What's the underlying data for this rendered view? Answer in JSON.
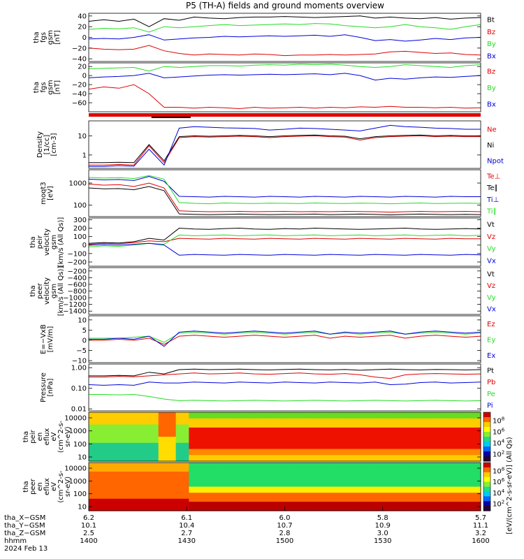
{
  "title": "P5 (TH-A) fields and ground moments overview",
  "colors": {
    "black": "#000000",
    "red": "#e00000",
    "green": "#22dd22",
    "blue": "#0000dd"
  },
  "chart_data": [
    {
      "type": "line",
      "ylabel": [
        "tha",
        "fgs",
        "gsm",
        "[nT]"
      ],
      "yticks": [
        "40",
        "20",
        "0",
        "−20",
        "−40"
      ],
      "ylim": [
        -45,
        45
      ],
      "series": [
        {
          "name": "Bt",
          "color": "black",
          "y": [
            30,
            33,
            30,
            34,
            20,
            35,
            32,
            38,
            36,
            35,
            37,
            38,
            38,
            39,
            38,
            37,
            38,
            39,
            40,
            36,
            38,
            36,
            35,
            37,
            34,
            36,
            37
          ]
        },
        {
          "name": "Bz",
          "color": "red",
          "y": [
            -20,
            -22,
            -23,
            -22,
            -15,
            -25,
            -30,
            -33,
            -31,
            -32,
            -33,
            -31,
            -32,
            -34,
            -33,
            -33,
            -32,
            -33,
            -32,
            -31,
            -27,
            -26,
            -28,
            -30,
            -29,
            -32,
            -33
          ]
        },
        {
          "name": "By",
          "color": "green",
          "y": [
            15,
            17,
            16,
            18,
            10,
            20,
            18,
            20,
            22,
            24,
            22,
            23,
            24,
            25,
            24,
            26,
            25,
            22,
            20,
            18,
            20,
            24,
            20,
            18,
            15,
            20,
            24
          ]
        },
        {
          "name": "Bx",
          "color": "blue",
          "y": [
            -3,
            -2,
            -3,
            0,
            5,
            -5,
            -3,
            -1,
            0,
            2,
            1,
            2,
            3,
            2,
            3,
            4,
            2,
            5,
            0,
            -6,
            -4,
            -7,
            -5,
            -2,
            -4,
            -1,
            0
          ]
        }
      ]
    },
    {
      "type": "line",
      "ylabel": [
        "tha",
        "fgs",
        "gsm",
        "[nT]"
      ],
      "yticks": [
        "20",
        "0",
        "−20",
        "−40",
        "−60"
      ],
      "ylim": [
        -80,
        28
      ],
      "series": [
        {
          "name": "Bz",
          "color": "red",
          "y": [
            -30,
            -25,
            -28,
            -20,
            -40,
            -70,
            -70,
            -72,
            -70,
            -71,
            -73,
            -70,
            -72,
            -71,
            -70,
            -72,
            -70,
            -71,
            -69,
            -70,
            -68,
            -70,
            -70,
            -71,
            -70,
            -72,
            -71
          ]
        },
        {
          "name": "By",
          "color": "green",
          "y": [
            15,
            16,
            17,
            18,
            10,
            20,
            18,
            20,
            22,
            22,
            21,
            23,
            24,
            23,
            25,
            24,
            25,
            23,
            20,
            18,
            20,
            24,
            22,
            20,
            18,
            22,
            24
          ]
        },
        {
          "name": "Bx",
          "color": "blue",
          "y": [
            -5,
            -3,
            -2,
            0,
            5,
            -5,
            -3,
            -1,
            1,
            2,
            1,
            2,
            3,
            2,
            3,
            4,
            2,
            5,
            0,
            -10,
            -6,
            -8,
            -5,
            -3,
            -4,
            -2,
            0
          ]
        }
      ]
    },
    {
      "type": "line",
      "scale": "log",
      "ylabel": [
        "Density",
        "[1/cc]",
        "[cm-3]"
      ],
      "yticks": [
        "10",
        "1"
      ],
      "ylim": [
        0.2,
        60
      ],
      "series": [
        {
          "name": "Ne",
          "color": "red",
          "y": [
            0.3,
            0.3,
            0.32,
            0.3,
            3,
            0.4,
            8,
            9,
            8.5,
            9,
            9.5,
            9,
            8,
            9,
            9.5,
            10,
            9,
            8.5,
            6,
            8,
            9,
            9.5,
            10,
            9,
            9.5,
            9,
            9
          ]
        },
        {
          "name": "Ni",
          "color": "black",
          "y": [
            0.4,
            0.4,
            0.42,
            0.4,
            3.5,
            0.5,
            9,
            10,
            9.5,
            10,
            10.5,
            10,
            9,
            10,
            10.5,
            11,
            10,
            9.5,
            7,
            9,
            10,
            10.5,
            11,
            10,
            10.5,
            10,
            10
          ]
        },
        {
          "name": "Npot",
          "color": "blue",
          "y": [
            0.25,
            0.25,
            0.28,
            0.26,
            2,
            0.3,
            25,
            30,
            28,
            26,
            25,
            24,
            20,
            22,
            25,
            24,
            22,
            20,
            18,
            25,
            35,
            30,
            28,
            25,
            24,
            22,
            22
          ]
        }
      ]
    },
    {
      "type": "line",
      "scale": "log",
      "ylabel": [
        "moqt3",
        "[eV]"
      ],
      "yticks": [
        "1000",
        "100"
      ],
      "ylim": [
        30,
        4000
      ],
      "series": [
        {
          "name": "Te⊥",
          "color": "red",
          "y": [
            900,
            800,
            850,
            700,
            1000,
            600,
            55,
            52,
            50,
            51,
            52,
            50,
            51,
            52,
            50,
            51,
            50,
            52,
            51,
            50,
            48,
            50,
            52,
            50,
            51,
            52,
            50
          ]
        },
        {
          "name": "Te∥",
          "color": "black",
          "y": [
            600,
            550,
            560,
            500,
            700,
            450,
            40,
            38,
            37,
            38,
            39,
            38,
            37,
            38,
            38,
            39,
            37,
            38,
            39,
            38,
            36,
            38,
            39,
            38,
            37,
            38,
            37
          ]
        },
        {
          "name": "Ti⊥",
          "color": "blue",
          "y": [
            1500,
            1400,
            1450,
            1300,
            2000,
            1200,
            250,
            240,
            230,
            250,
            240,
            230,
            250,
            240,
            230,
            250,
            240,
            230,
            250,
            240,
            230,
            250,
            240,
            230,
            250,
            240,
            240
          ]
        },
        {
          "name": "Ti∥",
          "color": "green",
          "y": [
            1800,
            1700,
            1750,
            1600,
            2200,
            1500,
            130,
            120,
            115,
            125,
            120,
            118,
            122,
            120,
            118,
            125,
            120,
            118,
            122,
            120,
            115,
            120,
            125,
            118,
            120,
            122,
            120
          ]
        }
      ]
    },
    {
      "type": "line",
      "ylabel": [
        "tha",
        "peir",
        "velocity",
        "gsm",
        "[km/s (All Qs)]"
      ],
      "yticks": [
        "300",
        "200",
        "100",
        "0",
        "−100",
        "−200"
      ],
      "ylim": [
        -250,
        320
      ],
      "series": [
        {
          "name": "Vt",
          "color": "black",
          "y": [
            20,
            30,
            25,
            40,
            80,
            60,
            200,
            190,
            185,
            195,
            200,
            190,
            185,
            195,
            190,
            200,
            195,
            190,
            185,
            190,
            195,
            200,
            190,
            185,
            190,
            195,
            190
          ]
        },
        {
          "name": "Vz",
          "color": "red",
          "y": [
            10,
            20,
            15,
            30,
            50,
            40,
            80,
            75,
            70,
            80,
            75,
            70,
            80,
            75,
            70,
            80,
            75,
            70,
            80,
            75,
            70,
            80,
            75,
            70,
            80,
            75,
            75
          ]
        },
        {
          "name": "Vy",
          "color": "green",
          "y": [
            -20,
            -10,
            -15,
            0,
            20,
            10,
            120,
            110,
            115,
            120,
            110,
            115,
            120,
            110,
            115,
            120,
            110,
            115,
            120,
            110,
            115,
            120,
            110,
            115,
            120,
            110,
            115
          ]
        },
        {
          "name": "Vx",
          "color": "blue",
          "y": [
            0,
            5,
            0,
            10,
            20,
            0,
            -120,
            -110,
            -115,
            -120,
            -110,
            -115,
            -120,
            -110,
            -115,
            -120,
            -110,
            -115,
            -120,
            -110,
            -115,
            -120,
            -110,
            -115,
            -120,
            -110,
            -115
          ]
        }
      ]
    },
    {
      "type": "line",
      "ylabel": [
        "tha",
        "peer",
        "velocity",
        "gsm",
        "[km/s (All Qs)]"
      ],
      "yticks": [
        "−200",
        "−400",
        "−600",
        "−800",
        "−1000",
        "−1200",
        "−1400"
      ],
      "ylim": [
        -1500,
        -100
      ],
      "series": [
        {
          "name": "Vt",
          "color": "black",
          "y": []
        },
        {
          "name": "Vz",
          "color": "red",
          "y": []
        },
        {
          "name": "Vy",
          "color": "green",
          "y": []
        },
        {
          "name": "Vx",
          "color": "blue",
          "y": []
        }
      ]
    },
    {
      "type": "line",
      "ylabel": [
        "E=−VxB",
        "[mV/m]"
      ],
      "yticks": [
        "10",
        "5",
        "0",
        "−5",
        "−10"
      ],
      "ylim": [
        -11,
        12
      ],
      "series": [
        {
          "name": "Ez",
          "color": "red",
          "y": [
            0,
            0,
            0.5,
            0,
            1,
            -2,
            2,
            2.5,
            2,
            1.5,
            2,
            2.5,
            2,
            1.5,
            2,
            2.5,
            1,
            2,
            1.5,
            2,
            2.5,
            1,
            2,
            2.5,
            2,
            1.5,
            2
          ]
        },
        {
          "name": "Ey",
          "color": "green",
          "y": [
            1,
            1,
            1,
            1.5,
            2,
            -1,
            3.5,
            4,
            3.5,
            3,
            3.5,
            4,
            3.5,
            3,
            3.5,
            4,
            3,
            3.5,
            3,
            3.5,
            4,
            3,
            3.5,
            4,
            3.5,
            3,
            3.5
          ]
        },
        {
          "name": "Ex",
          "color": "blue",
          "y": [
            0.5,
            0.5,
            1,
            0.5,
            2,
            -3,
            4,
            4.5,
            4,
            3.5,
            4,
            4.5,
            4,
            3.5,
            4,
            4.5,
            3,
            4,
            3.5,
            4,
            4.5,
            3,
            4,
            4.5,
            4,
            3.5,
            4
          ]
        }
      ]
    },
    {
      "type": "line",
      "scale": "log",
      "ylabel": [
        "Pressure",
        "[nPa]"
      ],
      "yticks": [
        "1.00",
        "0.10",
        "0.01"
      ],
      "ylim": [
        0.008,
        1.5
      ],
      "series": [
        {
          "name": "Pt",
          "color": "black",
          "y": [
            0.4,
            0.4,
            0.42,
            0.4,
            0.6,
            0.5,
            0.8,
            0.85,
            0.8,
            0.82,
            0.85,
            0.8,
            0.78,
            0.82,
            0.85,
            0.8,
            0.78,
            0.82,
            0.75,
            0.8,
            0.85,
            0.8,
            0.78,
            0.82,
            0.8,
            0.78,
            0.8
          ]
        },
        {
          "name": "Pb",
          "color": "red",
          "y": [
            0.35,
            0.35,
            0.38,
            0.36,
            0.4,
            0.45,
            0.5,
            0.55,
            0.5,
            0.52,
            0.55,
            0.5,
            0.48,
            0.52,
            0.55,
            0.5,
            0.48,
            0.52,
            0.45,
            0.35,
            0.3,
            0.45,
            0.5,
            0.52,
            0.5,
            0.48,
            0.5
          ]
        },
        {
          "name": "Pe",
          "color": "green",
          "y": [
            0.05,
            0.05,
            0.048,
            0.05,
            0.04,
            0.03,
            0.025,
            0.026,
            0.025,
            0.024,
            0.025,
            0.026,
            0.025,
            0.024,
            0.025,
            0.026,
            0.025,
            0.024,
            0.025,
            0.026,
            0.025,
            0.024,
            0.025,
            0.026,
            0.025,
            0.024,
            0.025
          ]
        },
        {
          "name": "Pi",
          "color": "blue",
          "y": [
            0.15,
            0.14,
            0.15,
            0.14,
            0.2,
            0.18,
            0.18,
            0.2,
            0.19,
            0.18,
            0.2,
            0.19,
            0.18,
            0.2,
            0.19,
            0.18,
            0.2,
            0.19,
            0.18,
            0.2,
            0.15,
            0.16,
            0.19,
            0.2,
            0.18,
            0.19,
            0.2
          ]
        }
      ]
    },
    {
      "type": "heatmap",
      "ylabel": [
        "tha",
        "peir",
        "en",
        "eflux",
        "eV",
        "(cm^2-s-",
        "sr-eV)"
      ],
      "yticks": [
        "10000",
        "1000",
        "100",
        "10"
      ],
      "colorbar_ticks": [
        "10^8",
        "10^6",
        "10^4",
        "10^2"
      ]
    },
    {
      "type": "heatmap",
      "ylabel": [
        "tha",
        "peer",
        "en",
        "eflux",
        "eV",
        "(cm^2-s-",
        "sr-eV)"
      ],
      "yticks": [
        "10000",
        "1000",
        "100",
        "10"
      ],
      "colorbar_ticks": [
        "10^8",
        "10^6",
        "10^4",
        "10^2"
      ]
    }
  ],
  "colorbar_label": "[eV/(cm^2-s-sr-eV)] (All Qs)",
  "x_axis": {
    "row_labels": [
      "tha_X−GSM",
      "tha_Y−GSM",
      "tha_Z−GSM",
      "hhmm",
      "2024 Feb 13"
    ],
    "ticks": [
      {
        "x": "6.2",
        "y": "10.1",
        "z": "2.5",
        "hhmm": "1400"
      },
      {
        "x": "6.1",
        "y": "10.4",
        "z": "2.7",
        "hhmm": "1430"
      },
      {
        "x": "6.0",
        "y": "10.7",
        "z": "2.8",
        "hhmm": "1500"
      },
      {
        "x": "5.8",
        "y": "10.9",
        "z": "3.0",
        "hhmm": "1530"
      },
      {
        "x": "5.7",
        "y": "11.1",
        "z": "3.2",
        "hhmm": "1600"
      }
    ]
  }
}
